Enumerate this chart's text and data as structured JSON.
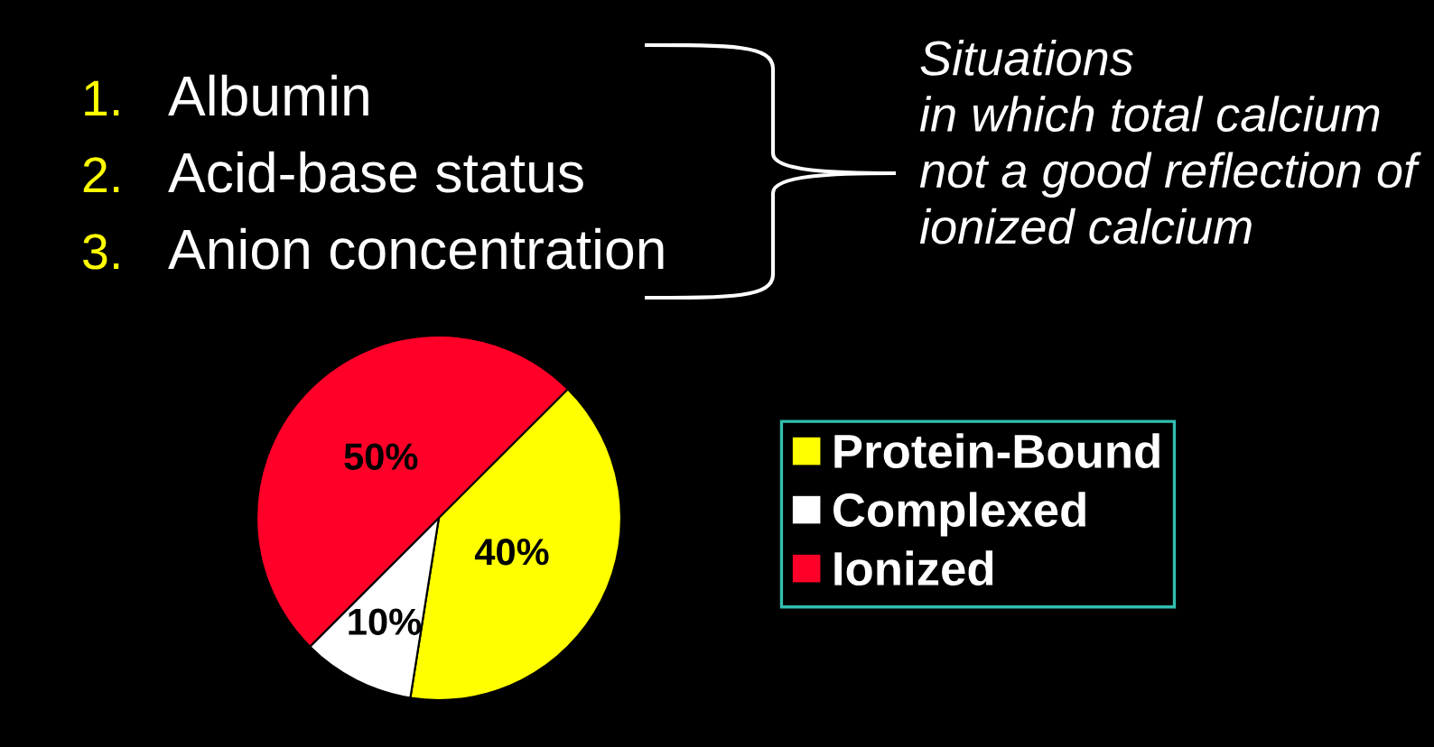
{
  "chart_data": {
    "type": "pie",
    "categories": [
      "Protein-Bound",
      "Complexed",
      "Ionized"
    ],
    "values": [
      40,
      10,
      50
    ],
    "colors": [
      "#ffff00",
      "#ffffff",
      "#ff0028"
    ],
    "value_labels": [
      "40%",
      "10%",
      "50%"
    ],
    "legend": "right",
    "annotations": [
      "1. Albumin",
      "2. Acid-base status",
      "3. Anion concentration",
      "Situations\nin which total calcium\nnot a good reflection of\nionized calcium"
    ]
  }
}
